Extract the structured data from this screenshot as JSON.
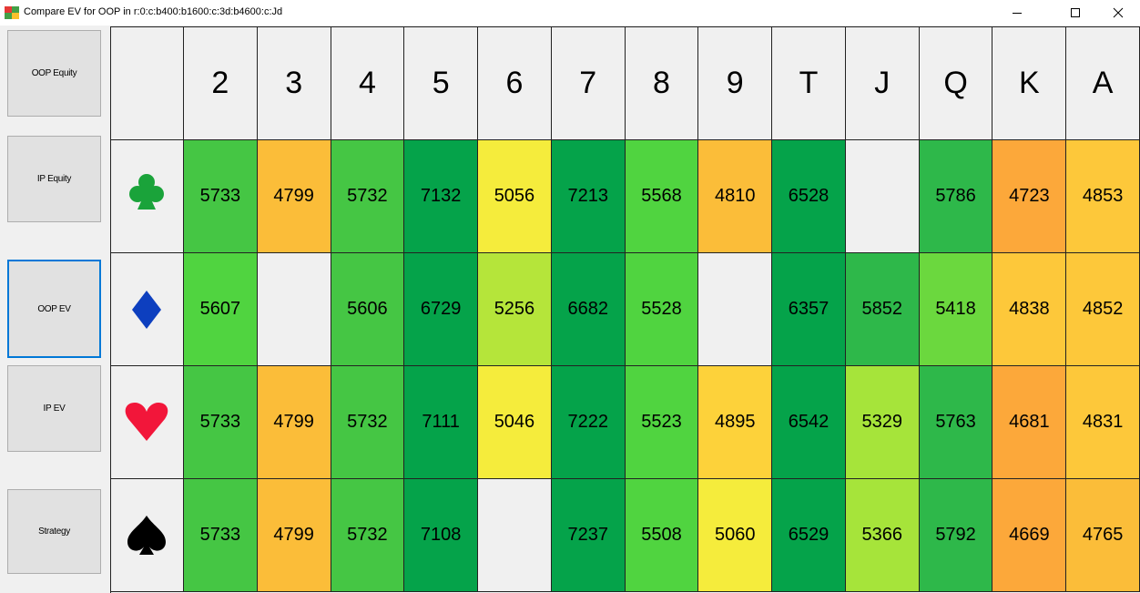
{
  "window": {
    "title": "Compare EV for OOP in r:0:c:b400:b1600:c:3d:b4600:c:Jd"
  },
  "sidebar": {
    "buttons": [
      "OOP Equity",
      "IP Equity",
      "OOP EV",
      "IP EV",
      "Strategy"
    ],
    "selected": 2
  },
  "table": {
    "columns": [
      "2",
      "3",
      "4",
      "5",
      "6",
      "7",
      "8",
      "9",
      "T",
      "J",
      "Q",
      "K",
      "A"
    ],
    "empty_color": "#f0f0f0",
    "rows": [
      {
        "values": [
          5733,
          4799,
          5732,
          7132,
          5056,
          7213,
          5568,
          4810,
          6528,
          null,
          5786,
          4723,
          4853
        ],
        "colors": [
          "#45c644",
          "#fbbd39",
          "#45c644",
          "#05a34a",
          "#f5ec3c",
          "#05a34a",
          "#50d440",
          "#fbbd39",
          "#05a34a",
          null,
          "#2eb84a",
          "#fca83a",
          "#fdc83a"
        ]
      },
      {
        "values": [
          5607,
          null,
          5606,
          6729,
          5256,
          6682,
          5528,
          null,
          6357,
          5852,
          5418,
          4838,
          4852
        ],
        "colors": [
          "#50d440",
          null,
          "#45c644",
          "#05a34a",
          "#b5e53a",
          "#05a34a",
          "#50d440",
          null,
          "#05a34a",
          "#2eb84a",
          "#6bd83e",
          "#fdc83a",
          "#fdc83a"
        ]
      },
      {
        "values": [
          5733,
          4799,
          5732,
          7111,
          5046,
          7222,
          5523,
          4895,
          6542,
          5329,
          5763,
          4681,
          4831
        ],
        "colors": [
          "#45c644",
          "#fbbd39",
          "#45c644",
          "#05a34a",
          "#f5ec3c",
          "#05a34a",
          "#50d440",
          "#fdd23a",
          "#05a34a",
          "#a6e43a",
          "#2eb84a",
          "#fca83a",
          "#fdc83a"
        ]
      },
      {
        "values": [
          5733,
          4799,
          5732,
          7108,
          null,
          7237,
          5508,
          5060,
          6529,
          5366,
          5792,
          4669,
          4765
        ],
        "colors": [
          "#45c644",
          "#fbbd39",
          "#45c644",
          "#05a34a",
          null,
          "#05a34a",
          "#50d440",
          "#f5ec3c",
          "#05a34a",
          "#a6e43a",
          "#2eb84a",
          "#fca83a",
          "#fbbd39"
        ]
      }
    ]
  }
}
